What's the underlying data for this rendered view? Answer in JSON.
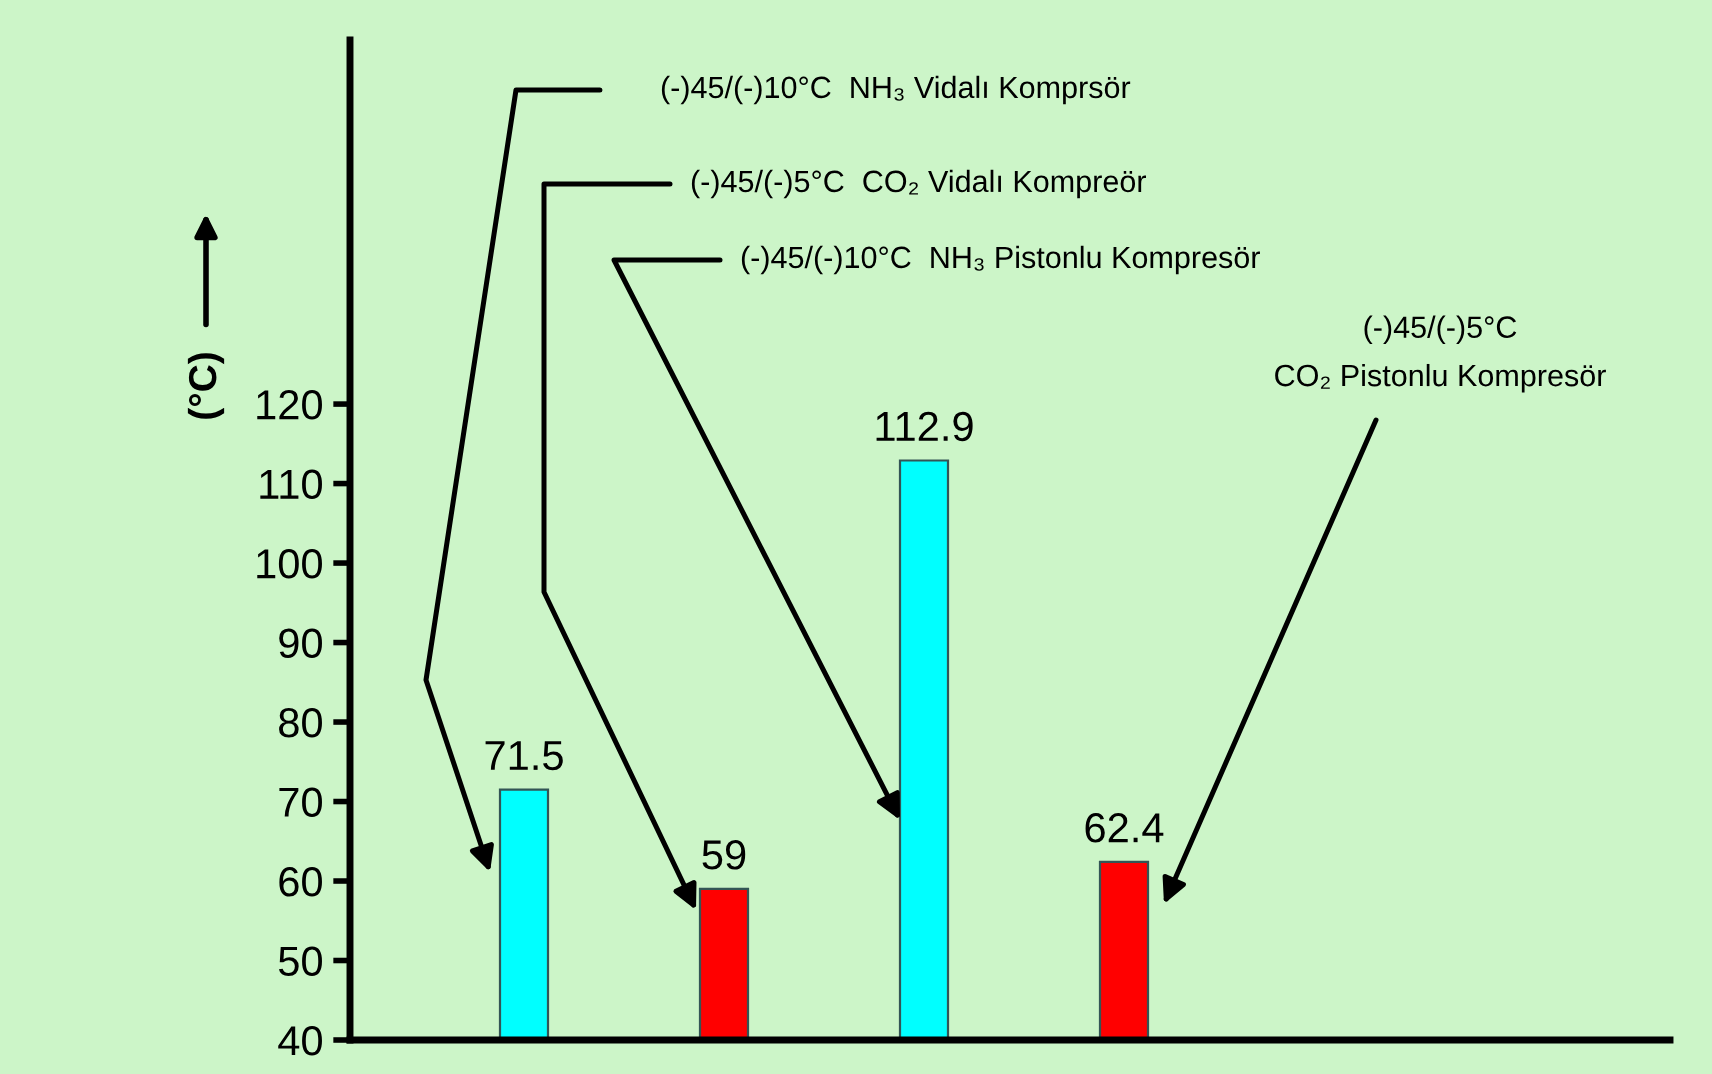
{
  "chart_data": {
    "type": "bar",
    "ylabel": "(°C)",
    "categories": [
      null,
      null,
      null,
      null
    ],
    "values": [
      71.5,
      59,
      112.9,
      62.4
    ],
    "colors": [
      "#00ffff",
      "#ff0000",
      "#00ffff",
      "#ff0000"
    ],
    "ylim": [
      40,
      165.8
    ],
    "yticks": [
      40,
      50,
      60,
      70,
      80,
      90,
      100,
      110,
      120
    ],
    "data_labels": true,
    "grid": false,
    "legend": false,
    "annotations": [
      "(-)45/(-)10°C  NH₃ Vidalı Komprsör",
      "(-)45/(-)5°C  CO₂ Vidalı Kompreör",
      "(-)45/(-)10°C  NH₃ Pistonlu Kompresör",
      "(-)45/(-)5°C\nCO₂ Pistonlu Kompresör"
    ]
  }
}
